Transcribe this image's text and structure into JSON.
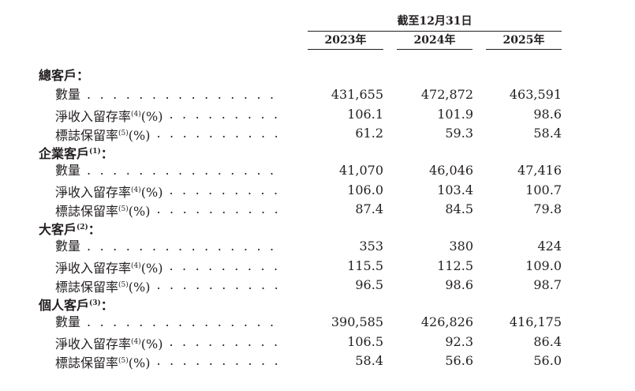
{
  "header": {
    "group_label": "截至12月31日",
    "years": [
      "2023年",
      "2024年",
      "2025年"
    ]
  },
  "sections": [
    {
      "title": "總客戶",
      "note": "",
      "suffix": "：",
      "rows": [
        {
          "label": "數量",
          "note": "",
          "tail": "",
          "values": [
            "431,655",
            "472,872",
            "463,591"
          ]
        },
        {
          "label": "淨收入留存率",
          "note": "(4)",
          "tail": "(%)",
          "values": [
            "106.1",
            "101.9",
            "98.6"
          ]
        },
        {
          "label": "標誌保留率",
          "note": "(5)",
          "tail": "(%)",
          "values": [
            "61.2",
            "59.3",
            "58.4"
          ]
        }
      ]
    },
    {
      "title": "企業客戶",
      "note": "(1)",
      "suffix": "：",
      "rows": [
        {
          "label": "數量",
          "note": "",
          "tail": "",
          "values": [
            "41,070",
            "46,046",
            "47,416"
          ]
        },
        {
          "label": "淨收入留存率",
          "note": "(4)",
          "tail": "(%)",
          "values": [
            "106.0",
            "103.4",
            "100.7"
          ]
        },
        {
          "label": "標誌保留率",
          "note": "(5)",
          "tail": "(%)",
          "values": [
            "87.4",
            "84.5",
            "79.8"
          ]
        }
      ]
    },
    {
      "title": "大客戶",
      "note": "(2)",
      "suffix": "：",
      "rows": [
        {
          "label": "數量",
          "note": "",
          "tail": "",
          "values": [
            "353",
            "380",
            "424"
          ]
        },
        {
          "label": "淨收入留存率",
          "note": "(4)",
          "tail": "(%)",
          "values": [
            "115.5",
            "112.5",
            "109.0"
          ]
        },
        {
          "label": "標誌保留率",
          "note": "(5)",
          "tail": "(%)",
          "values": [
            "96.5",
            "98.6",
            "98.7"
          ]
        }
      ]
    },
    {
      "title": "個人客戶",
      "note": "(3)",
      "suffix": "：",
      "rows": [
        {
          "label": "數量",
          "note": "",
          "tail": "",
          "values": [
            "390,585",
            "426,826",
            "416,175"
          ]
        },
        {
          "label": "淨收入留存率",
          "note": "(4)",
          "tail": "(%)",
          "values": [
            "106.5",
            "92.3",
            "86.4"
          ]
        },
        {
          "label": "標誌保留率",
          "note": "(5)",
          "tail": "(%)",
          "values": [
            "58.4",
            "56.6",
            "56.0"
          ]
        }
      ]
    }
  ]
}
